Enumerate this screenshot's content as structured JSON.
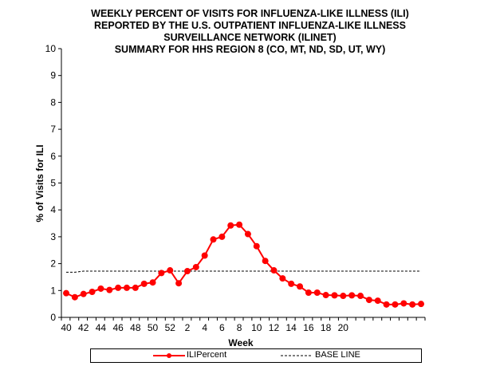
{
  "chart_data": {
    "type": "line",
    "title": [
      "WEEKLY PERCENT  OF VISITS FOR INFLUENZA-LIKE  ILLNESS (ILI)",
      "REPORTED  BY THE U.S. OUTPATIENT  INFLUENZA-LIKE  ILLNESS",
      "SURVEILLANCE  NETWORK  (ILINET)",
      "SUMMARY FOR HHS REGION 8 (CO, MT, ND, SD, UT, WY)"
    ],
    "xlabel": "Week",
    "ylabel": "% of Visits for ILI",
    "ylim": [
      0,
      10
    ],
    "yticks": [
      "0",
      "1",
      "2",
      "3",
      "4",
      "5",
      "6",
      "7",
      "8",
      "9",
      "10"
    ],
    "x": [
      40,
      41,
      42,
      43,
      44,
      45,
      46,
      47,
      48,
      49,
      50,
      51,
      52,
      1,
      2,
      3,
      4,
      5,
      6,
      7,
      8,
      9,
      10,
      11,
      12,
      13,
      14,
      15,
      16,
      17,
      18,
      19,
      20,
      21,
      22,
      23,
      24,
      25,
      26,
      27,
      28,
      29
    ],
    "xticklabels": [
      "40",
      "",
      "42",
      "",
      "44",
      "",
      "46",
      "",
      "48",
      "",
      "50",
      "",
      "52",
      "",
      "2",
      "",
      "4",
      "",
      "6",
      "",
      "8",
      "",
      "10",
      "",
      "12",
      "",
      "14",
      "",
      "16",
      "",
      "18",
      "",
      "20",
      "",
      "",
      "",
      "",
      "",
      "",
      "",
      "",
      ""
    ],
    "series": [
      {
        "name": "ILIPercent",
        "color": "#ff0000",
        "values": [
          0.9,
          0.75,
          0.87,
          0.95,
          1.07,
          1.02,
          1.1,
          1.1,
          1.1,
          1.25,
          1.3,
          1.65,
          1.75,
          1.27,
          1.72,
          1.87,
          2.3,
          2.9,
          3.0,
          3.42,
          3.45,
          3.1,
          2.65,
          2.1,
          1.75,
          1.45,
          1.25,
          1.15,
          0.92,
          0.92,
          0.83,
          0.82,
          0.8,
          0.82,
          0.8,
          0.65,
          0.62,
          0.48,
          0.48,
          0.52,
          0.48,
          0.5
        ]
      },
      {
        "name": "BASE LINE",
        "color": "#000000",
        "style": "dashed",
        "values": [
          1.68,
          1.68,
          1.72,
          1.72,
          1.72,
          1.72,
          1.72,
          1.72,
          1.72,
          1.72,
          1.72,
          1.72,
          1.72,
          1.72,
          1.72,
          1.72,
          1.72,
          1.72,
          1.72,
          1.72,
          1.72,
          1.72,
          1.72,
          1.72,
          1.72,
          1.72,
          1.72,
          1.72,
          1.72,
          1.72,
          1.72,
          1.72,
          1.72,
          1.72,
          1.72,
          1.72,
          1.72,
          1.72,
          1.72,
          1.72,
          1.72,
          1.72
        ]
      }
    ],
    "legend": {
      "placement": "bottom",
      "entries": [
        "ILIPercent",
        "BASE LINE"
      ]
    },
    "grid": false
  }
}
